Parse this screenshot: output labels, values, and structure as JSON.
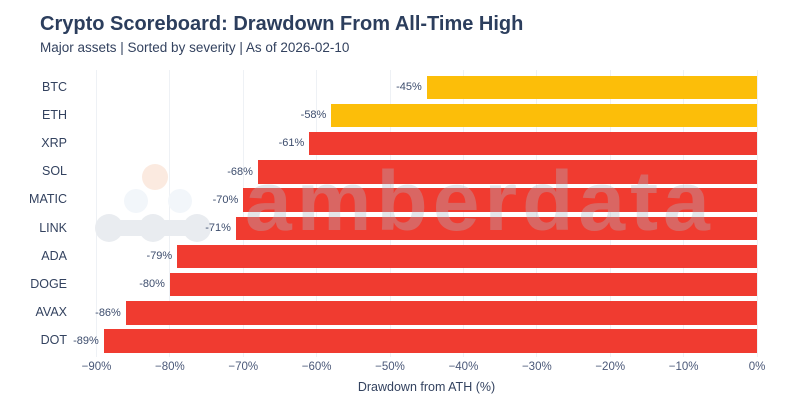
{
  "watermark": {
    "text": "amberdata",
    "logo_name": "amberdata-molecule-logo",
    "logo_colors": {
      "peach_circle": "#FBEAE0",
      "mid_circles": "#F2F6FA",
      "bottom_chain": "#E9ECF0"
    }
  },
  "colors": {
    "background": "#FFFFFF",
    "red_bar": "#F03B30",
    "gold_bar": "#FCBE09",
    "title_text": "#2C3E5D",
    "axis_text": "#4A5878",
    "gridline": "#EEF1F5"
  },
  "chart_data": {
    "type": "bar",
    "orientation": "horizontal",
    "title": "Crypto Scoreboard: Drawdown From All-Time High",
    "subtitle": "Major assets | Sorted by severity | As of 2026-02-10",
    "xlabel": "Drawdown from ATH (%)",
    "ylabel": "",
    "xlim": [
      -90,
      0
    ],
    "grid": true,
    "legend": "none",
    "categories": [
      "BTC",
      "ETH",
      "XRP",
      "SOL",
      "MATIC",
      "LINK",
      "ADA",
      "DOGE",
      "AVAX",
      "DOT"
    ],
    "values": [
      -45,
      -58,
      -61,
      -68,
      -70,
      -71,
      -79,
      -80,
      -86,
      -89
    ],
    "bar_labels": [
      "-45%",
      "-58%",
      "-61%",
      "-68%",
      "-70%",
      "-71%",
      "-79%",
      "-80%",
      "-86%",
      "-89%"
    ],
    "bar_colors": [
      "#FCBE09",
      "#FCBE09",
      "#F03B30",
      "#F03B30",
      "#F03B30",
      "#F03B30",
      "#F03B30",
      "#F03B30",
      "#F03B30",
      "#F03B30"
    ],
    "xticks": [
      {
        "value": -90,
        "label": "−90%"
      },
      {
        "value": -80,
        "label": "−80%"
      },
      {
        "value": -70,
        "label": "−70%"
      },
      {
        "value": -60,
        "label": "−60%"
      },
      {
        "value": -50,
        "label": "−50%"
      },
      {
        "value": -40,
        "label": "−40%"
      },
      {
        "value": -30,
        "label": "−30%"
      },
      {
        "value": -20,
        "label": "−20%"
      },
      {
        "value": -10,
        "label": "−10%"
      },
      {
        "value": 0,
        "label": "0%"
      }
    ]
  }
}
